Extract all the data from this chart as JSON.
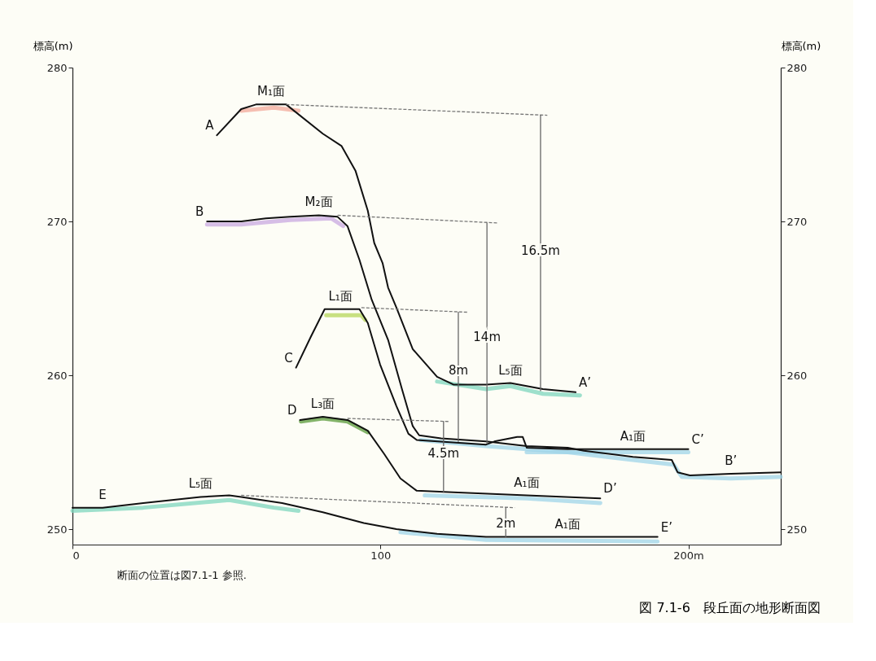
{
  "chart_data": {
    "type": "line",
    "title": "図 7.1-6　段丘面の地形断面図",
    "ylabel": "標高(m)",
    "y2label": "標高(m)",
    "xlim": [
      0,
      230
    ],
    "xticks": [
      0,
      100,
      {
        "value": 200,
        "label": "200m"
      }
    ],
    "ylim": [
      249,
      280
    ],
    "yticks": [
      250,
      260,
      270,
      280
    ],
    "y2lim": [
      249,
      280
    ],
    "y2ticks": [
      250,
      260,
      270,
      280
    ],
    "grid": false,
    "marker": "none",
    "series": [
      {
        "color": "#f2a89a",
        "x": [
          54.8,
          65.4,
          73.4
        ],
        "values": [
          277.2,
          277.4,
          277.2
        ]
      },
      {
        "color": "#c8a8e0",
        "x": [
          43.7,
          54.8,
          70.7,
          84,
          87.9
        ],
        "values": [
          269.8,
          269.8,
          270.1,
          270.2,
          269.7
        ]
      },
      {
        "color": "#b5d65a",
        "x": [
          82.4,
          93.8,
          95.1
        ],
        "values": [
          263.9,
          263.9,
          263.6
        ]
      },
      {
        "color": "#5a9a3a",
        "x": [
          74.2,
          81.3,
          89.3,
          95.9
        ],
        "values": [
          257,
          257.2,
          257,
          256.3
        ]
      },
      {
        "color": "#7dd6bd",
        "x": [
          118.4,
          134.3,
          142.2,
          152.8,
          164.8
        ],
        "values": [
          259.6,
          259.1,
          259.3,
          258.8,
          258.7
        ]
      },
      {
        "color": "#7dd6bd",
        "x": [
          0,
          23,
          50.9,
          65.4,
          73.4
        ],
        "values": [
          251.2,
          251.4,
          251.9,
          251.4,
          251.2
        ]
      },
      {
        "color": "#9fd4e8",
        "x": [
          113.1,
          134.3,
          160.8,
          182,
          195.2,
          197.9,
          213.8,
          230
        ],
        "values": [
          255.8,
          255.4,
          255,
          254.5,
          254.2,
          253.4,
          253.3,
          253.4
        ]
      },
      {
        "color": "#9fd4e8",
        "x": [
          147.5,
          170,
          200
        ],
        "values": [
          255,
          255,
          255
        ]
      },
      {
        "color": "#9fd4e8",
        "x": [
          114.4,
          147.5,
          171.4
        ],
        "values": [
          252.2,
          252,
          251.7
        ]
      },
      {
        "color": "#9fd4e8",
        "x": [
          106.5,
          134.3,
          190
        ],
        "values": [
          249.8,
          249.3,
          249.2
        ]
      },
      {
        "color": "#111111",
        "x": [
          46.9,
          54.8,
          59.6,
          64.5,
          69.4,
          81.3,
          87.4,
          91.9,
          95.9,
          98,
          100.7,
          102.5,
          105.2,
          110.5,
          118.4,
          123.7,
          134.3,
          142.2,
          152.8,
          163.4
        ],
        "values": [
          275.6,
          277.3,
          277.6,
          277.6,
          277.6,
          275.7,
          274.9,
          273.3,
          270.7,
          268.6,
          267.3,
          265.7,
          264.4,
          261.7,
          259.9,
          259.4,
          259.4,
          259.5,
          259.1,
          258.9
        ]
      },
      {
        "color": "#111111",
        "x": [
          43.7,
          54.8,
          62.8,
          70.7,
          80,
          86.1,
          89.3,
          93.2,
          97.2,
          102.5,
          107,
          110.5,
          112.6,
          119.7,
          134.3,
          147.5,
          160.8,
          166.1,
          182,
          194.6,
          196.5,
          200.5,
          213.8,
          230
        ],
        "values": [
          270,
          270,
          270.2,
          270.3,
          270.4,
          270.3,
          269.7,
          267.5,
          264.9,
          262.3,
          259.1,
          256.7,
          256.1,
          255.9,
          255.7,
          255.4,
          255.3,
          255.1,
          254.7,
          254.5,
          253.7,
          253.5,
          253.6,
          253.7
        ]
      },
      {
        "color": "#111111",
        "x": [
          72.6,
          77.4,
          81.9,
          87,
          93.2,
          95.9,
          99.9,
          105.2,
          109.1,
          111.8,
          134.3,
          137,
          144.4,
          146.2,
          147.5,
          160.8,
          182,
          200
        ],
        "values": [
          260.5,
          262.5,
          264.3,
          264.3,
          264.3,
          263.4,
          260.7,
          258,
          256.2,
          255.8,
          255.5,
          255.7,
          256,
          256,
          255.3,
          255.2,
          255.2,
          255.2
        ]
      },
      {
        "color": "#111111",
        "x": [
          73.9,
          81.3,
          89.3,
          95.9,
          101.2,
          106.5,
          111.8,
          123.7,
          147.5,
          171.4
        ],
        "values": [
          257.1,
          257.3,
          257.1,
          256.4,
          254.9,
          253.3,
          252.5,
          252.4,
          252.2,
          252
        ]
      },
      {
        "color": "#111111",
        "x": [
          0,
          9.8,
          23,
          41.6,
          50.9,
          54.8,
          68.1,
          81.3,
          94.6,
          105.2,
          118.4,
          134.3,
          160.8,
          190
        ],
        "values": [
          251.4,
          251.4,
          251.7,
          252.1,
          252.2,
          252.1,
          251.7,
          251.1,
          250.4,
          250,
          249.7,
          249.5,
          249.5,
          249.5
        ]
      },
      {
        "color": "#777777",
        "line_style": "dashed",
        "x": [
          69.4,
          154.2
        ],
        "values": [
          277.6,
          276.9
        ]
      },
      {
        "color": "#777777",
        "line_style": "dashed",
        "x": [
          86.1,
          138.3
        ],
        "values": [
          270.4,
          269.9
        ]
      },
      {
        "color": "#777777",
        "line_style": "dashed",
        "x": [
          93.8,
          128.5
        ],
        "values": [
          264.4,
          264.1
        ]
      },
      {
        "color": "#777777",
        "line_style": "dashed",
        "x": [
          89.3,
          122.4
        ],
        "values": [
          257.2,
          257
        ]
      },
      {
        "color": "#777777",
        "line_style": "dashed",
        "x": [
          54.8,
          143.6
        ],
        "values": [
          252.2,
          251.4
        ]
      },
      {
        "color": "#666666",
        "x": [
          152,
          152
        ],
        "values": [
          276.9,
          259
        ]
      },
      {
        "color": "#666666",
        "x": [
          134.6,
          134.6
        ],
        "values": [
          269.9,
          255.6
        ]
      },
      {
        "color": "#666666",
        "x": [
          125.3,
          125.3
        ],
        "values": [
          264.1,
          255.7
        ]
      },
      {
        "color": "#666666",
        "x": [
          120.5,
          120.5
        ],
        "values": [
          257,
          252.4
        ]
      },
      {
        "color": "#666666",
        "x": [
          140.7,
          140.7
        ],
        "values": [
          251.4,
          249.5
        ]
      }
    ],
    "annotations": [
      {
        "text": "16.5m",
        "x": 152,
        "y": 268.1
      },
      {
        "text": "14m",
        "x": 134.6,
        "y": 262.5
      },
      {
        "text": "8m",
        "x": 125.3,
        "y": 260.3
      },
      {
        "text": "4.5m",
        "x": 120.5,
        "y": 254.9
      },
      {
        "text": "2m",
        "x": 140.7,
        "y": 250.4
      },
      {
        "text": "A",
        "x": 46.9,
        "y": 275.6
      },
      {
        "text": "M₁面",
        "x": 64.5,
        "y": 277.6
      },
      {
        "text": "B",
        "x": 43.7,
        "y": 270
      },
      {
        "text": "M₂面",
        "x": 80,
        "y": 270.4
      },
      {
        "text": "C",
        "x": 72.6,
        "y": 260.5
      },
      {
        "text": "L₁面",
        "x": 87,
        "y": 264.3
      },
      {
        "text": "D",
        "x": 73.9,
        "y": 257.1
      },
      {
        "text": "L₃面",
        "x": 81.3,
        "y": 257.3
      },
      {
        "text": "L₅面",
        "x": 142.2,
        "y": 259.5
      },
      {
        "text": "A’",
        "x": 163.4,
        "y": 258.9
      },
      {
        "text": "A₁面",
        "x": 182,
        "y": 255.2
      },
      {
        "text": "C’",
        "x": 200,
        "y": 255.2
      },
      {
        "text": "B’",
        "x": 213.8,
        "y": 253.6
      },
      {
        "text": "A₁面",
        "x": 147.5,
        "y": 252.2
      },
      {
        "text": "D’",
        "x": 171.4,
        "y": 252
      },
      {
        "text": "E",
        "x": 9.8,
        "y": 251.4
      },
      {
        "text": "L₅面",
        "x": 41.6,
        "y": 252.1
      },
      {
        "text": "A₁面",
        "x": 160.8,
        "y": 249.5
      },
      {
        "text": "E’",
        "x": 190,
        "y": 249.5
      },
      "断面の位置は図7.1-1 参照."
    ]
  }
}
